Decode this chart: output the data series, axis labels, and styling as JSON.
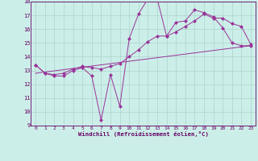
{
  "xlabel": "Windchill (Refroidissement éolien,°C)",
  "bg_color": "#cceee8",
  "grid_color": "#aad4cc",
  "line_color": "#993399",
  "xlim": [
    -0.5,
    23.5
  ],
  "ylim": [
    9,
    18
  ],
  "xticks": [
    0,
    1,
    2,
    3,
    4,
    5,
    6,
    7,
    8,
    9,
    10,
    11,
    12,
    13,
    14,
    15,
    16,
    17,
    18,
    19,
    20,
    21,
    22,
    23
  ],
  "yticks": [
    9,
    10,
    11,
    12,
    13,
    14,
    15,
    16,
    17,
    18
  ],
  "curve1_x": [
    0,
    1,
    2,
    3,
    4,
    5,
    6,
    7,
    8,
    9,
    10,
    11,
    12,
    13,
    14,
    15,
    16,
    17,
    18,
    19,
    20,
    21,
    22,
    23
  ],
  "curve1_y": [
    13.4,
    12.8,
    12.6,
    12.6,
    13.0,
    13.2,
    12.6,
    9.4,
    12.7,
    10.4,
    15.3,
    17.1,
    18.2,
    18.2,
    15.5,
    16.5,
    16.6,
    17.4,
    17.2,
    16.9,
    16.1,
    15.0,
    14.8,
    14.8
  ],
  "curve2_x": [
    0,
    1,
    2,
    3,
    4,
    5,
    6,
    7,
    8,
    9,
    10,
    11,
    12,
    13,
    14,
    15,
    16,
    17,
    18,
    19,
    20,
    21,
    22,
    23
  ],
  "curve2_y": [
    13.4,
    12.8,
    12.7,
    12.8,
    13.1,
    13.3,
    13.2,
    13.1,
    13.3,
    13.5,
    14.0,
    14.5,
    15.1,
    15.5,
    15.5,
    15.8,
    16.2,
    16.6,
    17.1,
    16.8,
    16.8,
    16.4,
    16.2,
    14.9
  ],
  "curve3_x": [
    0,
    23
  ],
  "curve3_y": [
    12.8,
    14.8
  ],
  "markersize": 2.5
}
